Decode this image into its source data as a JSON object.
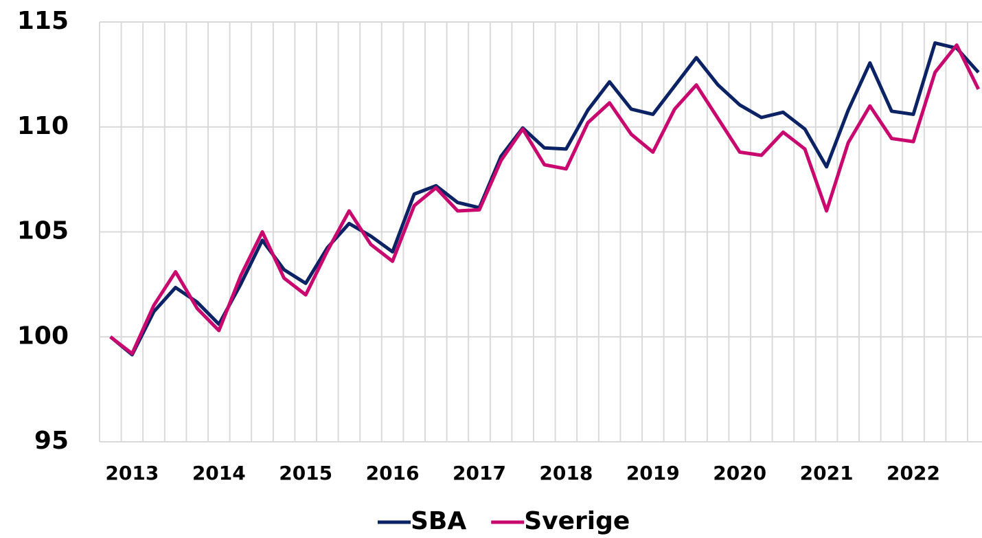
{
  "chart_data": {
    "type": "line",
    "categories": [
      null,
      "2013",
      null,
      null,
      null,
      "2014",
      null,
      null,
      null,
      "2015",
      null,
      null,
      null,
      "2016",
      null,
      null,
      null,
      "2017",
      null,
      null,
      null,
      "2018",
      null,
      null,
      null,
      "2019",
      null,
      null,
      null,
      "2020",
      null,
      null,
      null,
      "2021",
      null,
      null,
      null,
      "2022",
      null,
      null,
      null
    ],
    "series": [
      {
        "name": "SBA",
        "color": "#0b2265",
        "values": [
          100,
          99.15,
          101.2,
          102.35,
          101.65,
          100.6,
          102.5,
          104.6,
          103.2,
          102.55,
          104.25,
          105.4,
          104.8,
          104.05,
          106.8,
          107.2,
          106.4,
          106.15,
          108.6,
          109.95,
          109.0,
          108.95,
          110.8,
          112.15,
          110.85,
          110.6,
          111.95,
          113.3,
          112.0,
          111.05,
          110.45,
          110.7,
          109.9,
          108.1,
          110.8,
          113.05,
          110.75,
          110.6,
          114.0,
          113.75,
          112.6
        ]
      },
      {
        "name": "Sverige",
        "color": "#c8086e",
        "values": [
          100,
          99.2,
          101.5,
          103.1,
          101.35,
          100.3,
          102.9,
          105.0,
          102.8,
          102.0,
          104.1,
          106.0,
          104.4,
          103.6,
          106.25,
          107.1,
          106.0,
          106.05,
          108.4,
          109.9,
          108.2,
          108.0,
          110.2,
          111.15,
          109.65,
          108.8,
          110.85,
          112.0,
          110.4,
          108.8,
          108.65,
          109.75,
          108.95,
          106.0,
          109.25,
          111.0,
          109.45,
          109.3,
          112.6,
          113.9,
          111.8
        ]
      }
    ],
    "ylim": [
      95,
      115
    ],
    "yticks": [
      95,
      100,
      105,
      110,
      115
    ],
    "grid": true,
    "legend": "bottom"
  }
}
